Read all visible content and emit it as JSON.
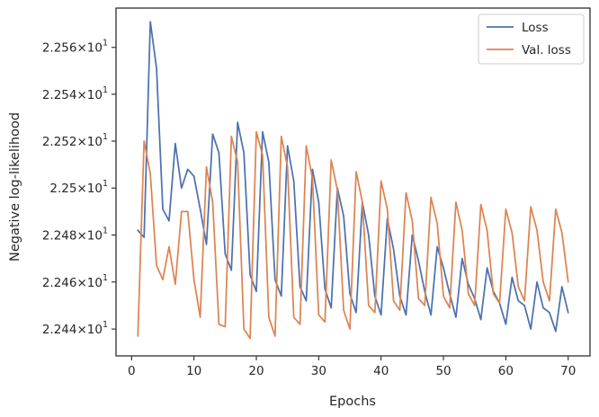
{
  "chart_data": {
    "type": "line",
    "xlabel": "Epochs",
    "ylabel": "Negative log-likelihood",
    "xlim": [
      -2.5,
      73.5
    ],
    "ylim": [
      22.4286,
      22.5768
    ],
    "log_scale_y": true,
    "grid": false,
    "legend_position": "top-right",
    "x_ticks": [
      0,
      10,
      20,
      30,
      40,
      50,
      60,
      70
    ],
    "x_tick_labels": [
      "0",
      "10",
      "20",
      "30",
      "40",
      "50",
      "60",
      "70"
    ],
    "y_ticks": [
      22.44,
      22.46,
      22.48,
      22.5,
      22.52,
      22.54,
      22.56
    ],
    "y_tick_labels": [
      {
        "mantissa": "2.244",
        "base": "10",
        "exp": "1"
      },
      {
        "mantissa": "2.246",
        "base": "10",
        "exp": "1"
      },
      {
        "mantissa": "2.248",
        "base": "10",
        "exp": "1"
      },
      {
        "mantissa": "2.25",
        "base": "10",
        "exp": "1"
      },
      {
        "mantissa": "2.252",
        "base": "10",
        "exp": "1"
      },
      {
        "mantissa": "2.254",
        "base": "10",
        "exp": "1"
      },
      {
        "mantissa": "2.256",
        "base": "10",
        "exp": "1"
      }
    ],
    "x": [
      1,
      2,
      3,
      4,
      5,
      6,
      7,
      8,
      9,
      10,
      11,
      12,
      13,
      14,
      15,
      16,
      17,
      18,
      19,
      20,
      21,
      22,
      23,
      24,
      25,
      26,
      27,
      28,
      29,
      30,
      31,
      32,
      33,
      34,
      35,
      36,
      37,
      38,
      39,
      40,
      41,
      42,
      43,
      44,
      45,
      46,
      47,
      48,
      49,
      50,
      51,
      52,
      53,
      54,
      55,
      56,
      57,
      58,
      59,
      60,
      61,
      62,
      63,
      64,
      65,
      66,
      67,
      68,
      69,
      70
    ],
    "series": [
      {
        "name": "Loss",
        "color": "#4c72b0",
        "values": [
          22.482,
          22.479,
          22.571,
          22.551,
          22.491,
          22.486,
          22.519,
          22.5,
          22.508,
          22.505,
          22.491,
          22.476,
          22.523,
          22.515,
          22.472,
          22.465,
          22.528,
          22.515,
          22.463,
          22.456,
          22.524,
          22.511,
          22.461,
          22.454,
          22.518,
          22.503,
          22.458,
          22.452,
          22.508,
          22.494,
          22.457,
          22.449,
          22.5,
          22.488,
          22.455,
          22.447,
          22.494,
          22.48,
          22.454,
          22.446,
          22.487,
          22.474,
          22.454,
          22.446,
          22.48,
          22.469,
          22.456,
          22.446,
          22.475,
          22.466,
          22.455,
          22.445,
          22.47,
          22.459,
          22.453,
          22.444,
          22.466,
          22.456,
          22.451,
          22.442,
          22.462,
          22.452,
          22.45,
          22.44,
          22.46,
          22.449,
          22.447,
          22.439,
          22.458,
          22.447
        ]
      },
      {
        "name": "Val. loss",
        "color": "#dd8452",
        "values": [
          22.437,
          22.52,
          22.506,
          22.467,
          22.461,
          22.475,
          22.459,
          22.49,
          22.49,
          22.461,
          22.445,
          22.509,
          22.494,
          22.442,
          22.441,
          22.522,
          22.511,
          22.44,
          22.436,
          22.524,
          22.514,
          22.445,
          22.437,
          22.522,
          22.509,
          22.445,
          22.442,
          22.518,
          22.504,
          22.446,
          22.443,
          22.512,
          22.499,
          22.448,
          22.44,
          22.507,
          22.494,
          22.45,
          22.447,
          22.503,
          22.491,
          22.452,
          22.448,
          22.498,
          22.486,
          22.453,
          22.45,
          22.496,
          22.485,
          22.454,
          22.449,
          22.494,
          22.482,
          22.455,
          22.45,
          22.493,
          22.482,
          22.455,
          22.451,
          22.491,
          22.481,
          22.458,
          22.452,
          22.492,
          22.482,
          22.46,
          22.452,
          22.491,
          22.481,
          22.46
        ]
      }
    ]
  }
}
